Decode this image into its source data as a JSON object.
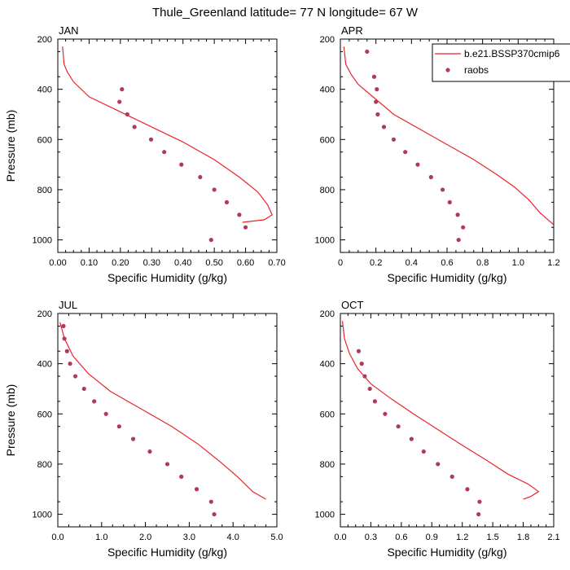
{
  "title": "Thule_Greenland  latitude= 77 N longitude= 67 W",
  "legend": {
    "line_label": "b.e21.BSSP370cmip6",
    "marker_label": "raobs",
    "placement": "top-right of APR panel, clipped at figure edge"
  },
  "colors": {
    "line": "#e8242b",
    "marker": "#b03a5b",
    "axes": "#000000"
  },
  "chart_data": [
    {
      "type": "line",
      "panel": "JAN",
      "title": "JAN",
      "xlabel": "Specific Humidity (g/kg)",
      "ylabel": "Pressure (mb)",
      "xlim": [
        0,
        0.7
      ],
      "ylim": [
        1050,
        200
      ],
      "y_inverted": true,
      "xticks": [
        "0.00",
        "0.10",
        "0.20",
        "0.30",
        "0.40",
        "0.50",
        "0.60",
        "0.70"
      ],
      "yticks": [
        "200",
        "400",
        "600",
        "800",
        "1000"
      ],
      "series": [
        {
          "name": "b.e21.BSSP370cmip6",
          "kind": "line",
          "x": [
            0.015,
            0.02,
            0.03,
            0.05,
            0.1,
            0.2,
            0.3,
            0.4,
            0.5,
            0.58,
            0.64,
            0.67,
            0.685,
            0.66,
            0.59
          ],
          "y": [
            230,
            300,
            330,
            370,
            430,
            490,
            550,
            610,
            680,
            750,
            810,
            860,
            900,
            920,
            930
          ]
        },
        {
          "name": "raobs",
          "kind": "scatter",
          "x": [
            0.205,
            0.197,
            0.222,
            0.245,
            0.298,
            0.34,
            0.395,
            0.455,
            0.5,
            0.54,
            0.58,
            0.6,
            0.49
          ],
          "y": [
            400,
            450,
            500,
            550,
            600,
            650,
            700,
            750,
            800,
            850,
            900,
            950,
            1000
          ]
        }
      ]
    },
    {
      "type": "line",
      "panel": "APR",
      "title": "APR",
      "xlabel": "Specific Humidity (g/kg)",
      "ylabel": "",
      "xlim": [
        0,
        1.2
      ],
      "ylim": [
        1050,
        200
      ],
      "y_inverted": true,
      "xticks": [
        "0",
        "0.2",
        "0.4",
        "0.6",
        "0.8",
        "1.0",
        "1.2"
      ],
      "yticks": [
        "200",
        "400",
        "600",
        "800",
        "1000"
      ],
      "series": [
        {
          "name": "b.e21.BSSP370cmip6",
          "kind": "line",
          "x": [
            0.02,
            0.03,
            0.06,
            0.1,
            0.2,
            0.3,
            0.45,
            0.6,
            0.75,
            0.88,
            0.98,
            1.06,
            1.12,
            1.2
          ],
          "y": [
            230,
            300,
            340,
            380,
            440,
            500,
            560,
            620,
            680,
            740,
            790,
            840,
            890,
            940
          ]
        },
        {
          "name": "raobs",
          "kind": "scatter",
          "x": [
            0.15,
            0.19,
            0.205,
            0.2,
            0.21,
            0.245,
            0.3,
            0.365,
            0.435,
            0.51,
            0.575,
            0.615,
            0.66,
            0.69,
            0.665
          ],
          "y": [
            250,
            350,
            400,
            450,
            500,
            550,
            600,
            650,
            700,
            750,
            800,
            850,
            900,
            950,
            1000
          ]
        }
      ]
    },
    {
      "type": "line",
      "panel": "JUL",
      "title": "JUL",
      "xlabel": "Specific Humidity (g/kg)",
      "ylabel": "Pressure (mb)",
      "xlim": [
        0,
        5
      ],
      "ylim": [
        1050,
        200
      ],
      "y_inverted": true,
      "xticks": [
        "0.0",
        "1.0",
        "2.0",
        "3.0",
        "4.0",
        "5.0"
      ],
      "yticks": [
        "200",
        "400",
        "600",
        "800",
        "1000"
      ],
      "series": [
        {
          "name": "b.e21.BSSP370cmip6",
          "kind": "line",
          "x": [
            0.05,
            0.15,
            0.35,
            0.7,
            1.2,
            1.9,
            2.6,
            3.2,
            3.7,
            4.1,
            4.45,
            4.75
          ],
          "y": [
            235,
            300,
            370,
            440,
            510,
            580,
            650,
            720,
            790,
            850,
            910,
            940
          ]
        },
        {
          "name": "raobs",
          "kind": "scatter",
          "x": [
            0.13,
            0.15,
            0.21,
            0.28,
            0.4,
            0.6,
            0.83,
            1.1,
            1.4,
            1.72,
            2.1,
            2.5,
            2.82,
            3.17,
            3.5,
            3.57
          ],
          "y": [
            250,
            300,
            350,
            400,
            450,
            500,
            550,
            600,
            650,
            700,
            750,
            800,
            850,
            900,
            950,
            1000
          ]
        }
      ]
    },
    {
      "type": "line",
      "panel": "OCT",
      "title": "OCT",
      "xlabel": "Specific Humidity (g/kg)",
      "ylabel": "",
      "xlim": [
        0,
        2.1
      ],
      "ylim": [
        1050,
        200
      ],
      "y_inverted": true,
      "xticks": [
        "0.0",
        "0.3",
        "0.6",
        "0.9",
        "1.2",
        "1.5",
        "1.8",
        "2.1"
      ],
      "yticks": [
        "200",
        "400",
        "600",
        "800",
        "1000"
      ],
      "series": [
        {
          "name": "b.e21.BSSP370cmip6",
          "kind": "line",
          "x": [
            0.02,
            0.04,
            0.09,
            0.17,
            0.3,
            0.5,
            0.72,
            0.95,
            1.18,
            1.42,
            1.65,
            1.85,
            1.92,
            1.95,
            1.87,
            1.8
          ],
          "y": [
            230,
            300,
            360,
            420,
            480,
            540,
            600,
            660,
            720,
            780,
            840,
            880,
            900,
            910,
            930,
            940
          ]
        },
        {
          "name": "raobs",
          "kind": "scatter",
          "x": [
            0.18,
            0.21,
            0.24,
            0.29,
            0.34,
            0.44,
            0.57,
            0.7,
            0.82,
            0.96,
            1.1,
            1.25,
            1.37,
            1.36
          ],
          "y": [
            350,
            400,
            450,
            500,
            550,
            600,
            650,
            700,
            750,
            800,
            850,
            900,
            950,
            1000
          ]
        }
      ]
    }
  ]
}
